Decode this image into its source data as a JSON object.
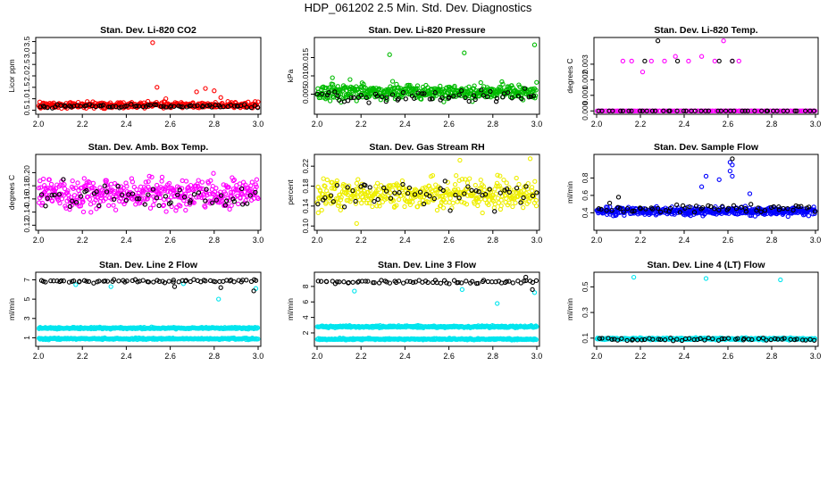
{
  "page": {
    "title": "HDP_061202  2.5 Min. Std. Dev. Diagnostics"
  },
  "chart_data": [
    {
      "type": "scatter",
      "title": "Stan. Dev. Li-820 CO2",
      "ylabel": "Licor ppm",
      "xlim": [
        2.0,
        3.0
      ],
      "ylim": [
        0.4,
        3.6
      ],
      "xticks": [
        "2.0",
        "2.2",
        "2.4",
        "2.6",
        "2.8",
        "3.0"
      ],
      "yticks": [
        "0.5",
        "1.0",
        "1.5",
        "2.0",
        "2.5",
        "3.0",
        "3.5"
      ],
      "series": [
        {
          "name": "Li-820 CO2 (red)",
          "color": "#ff0000",
          "count": 380,
          "base": 0.72,
          "spread": 0.14,
          "outliers": [
            [
              2.52,
              3.45
            ],
            [
              2.54,
              1.5
            ],
            [
              2.76,
              1.45
            ],
            [
              2.8,
              1.35
            ],
            [
              2.72,
              1.3
            ],
            [
              2.83,
              1.05
            ],
            [
              2.58,
              1.0
            ]
          ]
        },
        {
          "name": "Li-820 CO2 (black)",
          "color": "#000000",
          "count": 75,
          "base": 0.68,
          "spread": 0.08,
          "outliers": []
        }
      ]
    },
    {
      "type": "scatter",
      "title": "Stan. Dev. Li-820 Pressure",
      "ylabel": "kPa",
      "xlim": [
        2.0,
        3.0
      ],
      "ylim": [
        0.0,
        0.02
      ],
      "xticks": [
        "2.0",
        "2.2",
        "2.4",
        "2.6",
        "2.8",
        "3.0"
      ],
      "yticks": [
        "0.005",
        "0.010",
        "0.015"
      ],
      "series": [
        {
          "name": "Li-820 Pressure (green)",
          "color": "#00bb00",
          "count": 460,
          "base": 0.0055,
          "spread": 0.0022,
          "outliers": [
            [
              2.33,
              0.0158
            ],
            [
              2.67,
              0.0163
            ],
            [
              2.99,
              0.0185
            ],
            [
              2.07,
              0.0095
            ],
            [
              2.15,
              0.009
            ]
          ]
        },
        {
          "name": "Li-820 Pressure (black)",
          "color": "#000000",
          "count": 60,
          "base": 0.0045,
          "spread": 0.0018,
          "outliers": []
        }
      ]
    },
    {
      "type": "scatter",
      "title": "Stan. Dev. Li-820 Temp.",
      "ylabel": "degrees C",
      "xlim": [
        2.0,
        3.0
      ],
      "ylim": [
        -0.0001,
        0.0046
      ],
      "xticks": [
        "2.0",
        "2.2",
        "2.4",
        "2.6",
        "2.8",
        "3.0"
      ],
      "yticks": [
        "0.000",
        "0.001",
        "0.002",
        "0.003"
      ],
      "series": [
        {
          "name": "Li-820 Temp. (magenta)",
          "color": "#ff00ff",
          "count": 160,
          "base": 0.0,
          "spread": 0.0,
          "outliers": [
            [
              2.12,
              0.0032
            ],
            [
              2.16,
              0.0032
            ],
            [
              2.21,
              0.0025
            ],
            [
              2.25,
              0.0032
            ],
            [
              2.31,
              0.0032
            ],
            [
              2.36,
              0.0035
            ],
            [
              2.42,
              0.0032
            ],
            [
              2.48,
              0.0035
            ],
            [
              2.54,
              0.0032
            ],
            [
              2.58,
              0.0045
            ],
            [
              2.62,
              0.0032
            ],
            [
              2.65,
              0.0032
            ]
          ]
        },
        {
          "name": "Li-820 Temp. (black)",
          "color": "#000000",
          "count": 45,
          "base": 0.0,
          "spread": 0.0,
          "outliers": [
            [
              2.22,
              0.0032
            ],
            [
              2.28,
              0.0045
            ],
            [
              2.37,
              0.0032
            ],
            [
              2.56,
              0.0032
            ],
            [
              2.62,
              0.0032
            ]
          ]
        }
      ]
    },
    {
      "type": "scatter",
      "title": "Stan. Dev. Amb. Box Temp.",
      "ylabel": "degrees C",
      "xlim": [
        2.0,
        3.0
      ],
      "ylim": [
        0.115,
        0.225
      ],
      "xticks": [
        "2.0",
        "2.2",
        "2.4",
        "2.6",
        "2.8",
        "3.0"
      ],
      "yticks": [
        "0.12",
        "0.14",
        "0.16",
        "0.18",
        "0.20"
      ],
      "series": [
        {
          "name": "Amb. Box Temp. (magenta)",
          "color": "#ff00ff",
          "count": 420,
          "base": 0.168,
          "spread": 0.024,
          "outliers": []
        },
        {
          "name": "Amb. Box Temp. (black)",
          "color": "#000000",
          "count": 55,
          "base": 0.164,
          "spread": 0.02,
          "outliers": []
        }
      ]
    },
    {
      "type": "scatter",
      "title": "Stan. Dev. Gas Stream RH",
      "ylabel": "percent",
      "xlim": [
        2.0,
        3.0
      ],
      "ylim": [
        0.095,
        0.24
      ],
      "xticks": [
        "2.0",
        "2.2",
        "2.4",
        "2.6",
        "2.8",
        "3.0"
      ],
      "yticks": [
        "0.10",
        "0.14",
        "0.18",
        "0.22"
      ],
      "series": [
        {
          "name": "Gas Stream RH (yellow)",
          "color": "#eeee00",
          "count": 420,
          "base": 0.163,
          "spread": 0.03,
          "outliers": [
            [
              2.65,
              0.232
            ],
            [
              2.97,
              0.235
            ],
            [
              2.18,
              0.105
            ]
          ]
        },
        {
          "name": "Gas Stream RH (black)",
          "color": "#000000",
          "count": 55,
          "base": 0.165,
          "spread": 0.028,
          "outliers": []
        }
      ]
    },
    {
      "type": "scatter",
      "title": "Stan. Dev. Sample Flow",
      "ylabel": "ml/min",
      "xlim": [
        2.0,
        3.0
      ],
      "ylim": [
        0.22,
        1.05
      ],
      "xticks": [
        "2.0",
        "2.2",
        "2.4",
        "2.6",
        "2.8",
        "3.0"
      ],
      "yticks": [
        "0.4",
        "0.6",
        "0.8"
      ],
      "series": [
        {
          "name": "Sample Flow (blue)",
          "color": "#0000ff",
          "count": 430,
          "base": 0.42,
          "spread": 0.05,
          "outliers": [
            [
              2.61,
              0.98
            ],
            [
              2.62,
              0.95
            ],
            [
              2.61,
              0.88
            ],
            [
              2.62,
              0.82
            ],
            [
              2.5,
              0.82
            ],
            [
              2.7,
              0.62
            ],
            [
              2.48,
              0.7
            ],
            [
              2.56,
              0.78
            ]
          ]
        },
        {
          "name": "Sample Flow (black)",
          "color": "#000000",
          "count": 60,
          "base": 0.45,
          "spread": 0.05,
          "outliers": [
            [
              2.62,
              1.02
            ],
            [
              2.1,
              0.58
            ]
          ]
        }
      ]
    },
    {
      "type": "scatter",
      "title": "Stan. Dev. Line 2 Flow",
      "ylabel": "ml/min",
      "xlim": [
        2.0,
        3.0
      ],
      "ylim": [
        0.3,
        7.6
      ],
      "xticks": [
        "2.0",
        "2.2",
        "2.4",
        "2.6",
        "2.8",
        "3.0"
      ],
      "yticks": [
        "1",
        "3",
        "5",
        "7"
      ],
      "series": [
        {
          "name": "Line 2 Flow upper band (cyan)",
          "color": "#00e5ee",
          "count": 330,
          "base": 2.0,
          "spread": 0.09,
          "outliers": [
            [
              2.17,
              6.5
            ],
            [
              2.33,
              6.3
            ],
            [
              2.82,
              5.0
            ],
            [
              2.99,
              6.1
            ],
            [
              2.66,
              6.6
            ]
          ]
        },
        {
          "name": "Line 2 Flow lower band (cyan)",
          "color": "#00e5ee",
          "count": 330,
          "base": 0.9,
          "spread": 0.08,
          "outliers": []
        },
        {
          "name": "Line 2 Flow (black)",
          "color": "#000000",
          "count": 70,
          "base": 6.85,
          "spread": 0.18,
          "outliers": [
            [
              2.98,
              5.85
            ],
            [
              2.83,
              6.2
            ],
            [
              2.62,
              6.3
            ]
          ]
        }
      ]
    },
    {
      "type": "scatter",
      "title": "Stan. Dev. Line 3 Flow",
      "ylabel": "ml/min",
      "xlim": [
        2.0,
        3.0
      ],
      "ylim": [
        0.5,
        9.6
      ],
      "xticks": [
        "2.0",
        "2.2",
        "2.4",
        "2.6",
        "2.8",
        "3.0"
      ],
      "yticks": [
        "2",
        "4",
        "6",
        "8"
      ],
      "series": [
        {
          "name": "Line 3 Flow upper band (cyan)",
          "color": "#00e5ee",
          "count": 330,
          "base": 2.8,
          "spread": 0.15,
          "outliers": [
            [
              2.17,
              7.4
            ],
            [
              2.82,
              5.8
            ],
            [
              2.66,
              7.6
            ],
            [
              2.99,
              7.2
            ]
          ]
        },
        {
          "name": "Line 3 Flow lower band (cyan)",
          "color": "#00e5ee",
          "count": 330,
          "base": 1.2,
          "spread": 0.1,
          "outliers": []
        },
        {
          "name": "Line 3 Flow (black)",
          "color": "#000000",
          "count": 70,
          "base": 8.6,
          "spread": 0.25,
          "outliers": [
            [
              2.98,
              7.6
            ],
            [
              2.95,
              9.2
            ]
          ]
        }
      ]
    },
    {
      "type": "scatter",
      "title": "Stan. Dev. Line 4 (LT) Flow",
      "ylabel": "ml/min",
      "xlim": [
        2.0,
        3.0
      ],
      "ylim": [
        0.05,
        0.6
      ],
      "xticks": [
        "2.0",
        "2.2",
        "2.4",
        "2.6",
        "2.8",
        "3.0"
      ],
      "yticks": [
        "0.1",
        "0.3",
        "0.5"
      ],
      "series": [
        {
          "name": "Line 4 (LT) Flow (cyan)",
          "color": "#00e5ee",
          "count": 380,
          "base": 0.095,
          "spread": 0.008,
          "outliers": [
            [
              2.17,
              0.575
            ],
            [
              2.5,
              0.565
            ],
            [
              2.84,
              0.555
            ]
          ]
        },
        {
          "name": "Line 4 (LT) Flow (black)",
          "color": "#000000",
          "count": 55,
          "base": 0.092,
          "spread": 0.01,
          "outliers": []
        }
      ]
    }
  ]
}
